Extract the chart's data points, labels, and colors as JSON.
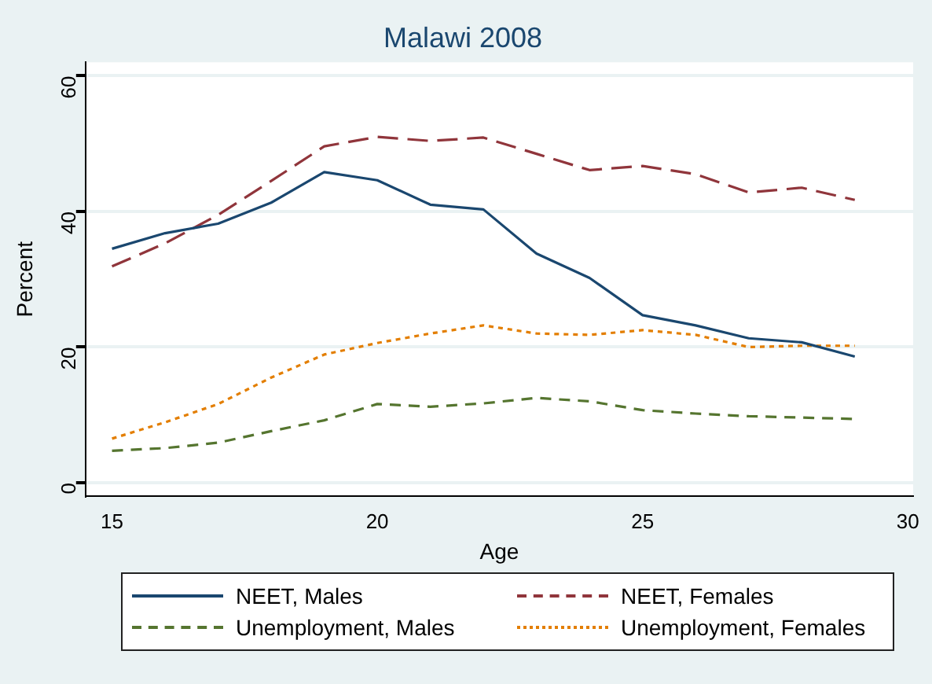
{
  "chart_data": {
    "type": "line",
    "title": "Malawi 2008",
    "xlabel": "Age",
    "ylabel": "Percent",
    "x": [
      15,
      16,
      17,
      18,
      19,
      20,
      21,
      22,
      23,
      24,
      25,
      26,
      27,
      28,
      29
    ],
    "xlim": [
      14.5,
      30.1
    ],
    "xticks": [
      15,
      20,
      25,
      30
    ],
    "ylim": [
      -2,
      62
    ],
    "yticks": [
      0,
      20,
      40,
      60
    ],
    "grid": "y",
    "legend": "bottom",
    "marker": "none",
    "series": [
      {
        "name": "NEET, Males",
        "color": "#1a476f",
        "line_style": "solid",
        "values": [
          34.5,
          36.8,
          38.2,
          41.3,
          45.8,
          44.6,
          41,
          40.3,
          33.8,
          30.2,
          24.7,
          23.2,
          21.3,
          20.7,
          18.6
        ]
      },
      {
        "name": "NEET, Females",
        "color": "#90353b",
        "line_style": "longdash",
        "values": [
          31.9,
          35.3,
          39.5,
          44.5,
          49.6,
          51,
          50.4,
          50.9,
          48.5,
          46.1,
          46.7,
          45.5,
          42.8,
          43.5,
          41.7
        ]
      },
      {
        "name": "Unemployment, Males",
        "color": "#55752f",
        "line_style": "dashed",
        "values": [
          4.7,
          5.1,
          5.9,
          7.6,
          9.2,
          11.6,
          11.2,
          11.7,
          12.5,
          12,
          10.7,
          10.2,
          9.8,
          9.6,
          9.4
        ]
      },
      {
        "name": "Unemployment, Females",
        "color": "#e37e00",
        "line_style": "dotted",
        "values": [
          6.5,
          8.9,
          11.6,
          15.5,
          18.9,
          20.6,
          22,
          23.2,
          22,
          21.8,
          22.5,
          21.8,
          20,
          20.2,
          20.2
        ]
      }
    ]
  }
}
